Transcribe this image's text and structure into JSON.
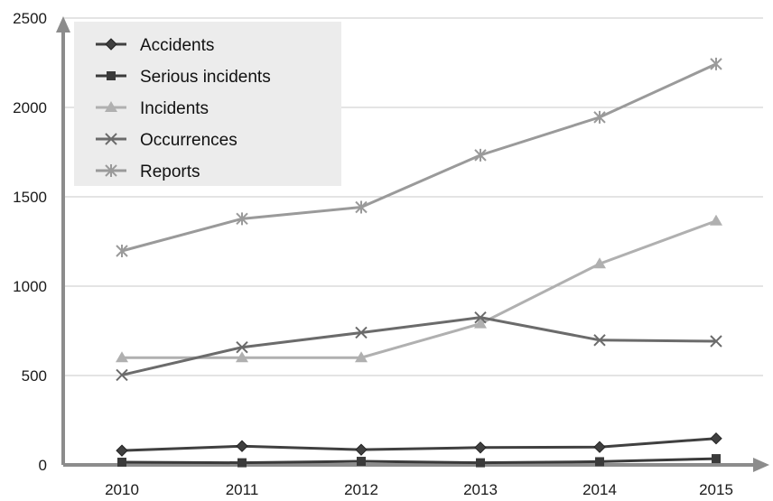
{
  "chart_data": {
    "type": "line",
    "categories": [
      "2010",
      "2011",
      "2012",
      "2013",
      "2014",
      "2015"
    ],
    "ylim": [
      0,
      2500
    ],
    "yticks": [
      "0",
      "500",
      "1000",
      "1500",
      "2000",
      "2500"
    ],
    "grid": true,
    "legend_position": "top-left",
    "title": "",
    "xlabel": "",
    "ylabel": "",
    "series": [
      {
        "name": "Accidents",
        "values": [
          80,
          105,
          85,
          97,
          100,
          148
        ],
        "color": "#404040",
        "marker": "diamond"
      },
      {
        "name": "Serious incidents",
        "values": [
          15,
          12,
          20,
          12,
          18,
          35
        ],
        "color": "#3a3a3a",
        "marker": "square"
      },
      {
        "name": "Incidents",
        "values": [
          600,
          600,
          600,
          790,
          1125,
          1365
        ],
        "color": "#b0b0b0",
        "marker": "triangle"
      },
      {
        "name": "Occurrences",
        "values": [
          503,
          658,
          740,
          825,
          698,
          692
        ],
        "color": "#6b6b6b",
        "marker": "x"
      },
      {
        "name": "Reports",
        "values": [
          1197,
          1377,
          1442,
          1733,
          1945,
          2243
        ],
        "color": "#9a9a9a",
        "marker": "star"
      }
    ]
  }
}
